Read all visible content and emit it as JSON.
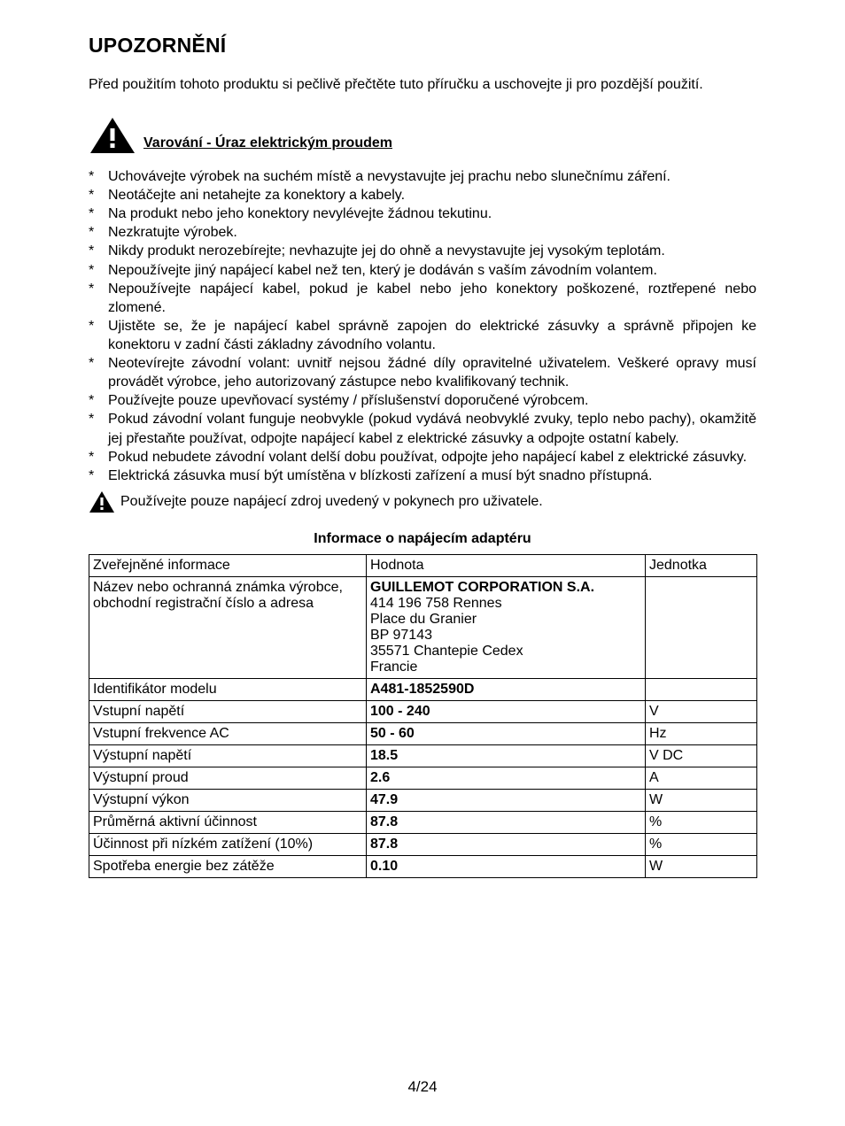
{
  "title": "UPOZORNĚNÍ",
  "intro": "Před použitím tohoto produktu si pečlivě přečtěte tuto příručku a uschovejte ji pro pozdější použití.",
  "warning_heading": "Varování - Úraz elektrickým proudem",
  "bullets": [
    {
      "text": "Uchovávejte výrobek na suchém místě a nevystavujte jej prachu nebo slunečnímu záření.",
      "justify": false
    },
    {
      "text": "Neotáčejte ani netahejte za konektory a kabely.",
      "justify": false
    },
    {
      "text": "Na produkt nebo jeho konektory nevylévejte žádnou tekutinu.",
      "justify": false
    },
    {
      "text": "Nezkratujte výrobek.",
      "justify": false
    },
    {
      "text": "Nikdy produkt nerozebírejte; nevhazujte jej do ohně a nevystavujte jej vysokým teplotám.",
      "justify": false
    },
    {
      "text": "Nepoužívejte jiný napájecí kabel než ten, který je dodáván s vaším závodním volantem.",
      "justify": false
    },
    {
      "text": "Nepoužívejte napájecí kabel, pokud je kabel nebo jeho konektory poškozené, roztřepené nebo zlomené.",
      "justify": true
    },
    {
      "text": "Ujistěte se, že je napájecí kabel správně zapojen do elektrické zásuvky a správně připojen ke konektoru v zadní části základny závodního volantu.",
      "justify": true
    },
    {
      "text": "Neotevírejte závodní volant: uvnitř nejsou žádné díly opravitelné uživatelem. Veškeré opravy musí provádět výrobce, jeho autorizovaný zástupce nebo kvalifikovaný technik.",
      "justify": true
    },
    {
      "text": "Používejte pouze upevňovací systémy / příslušenství doporučené výrobcem.",
      "justify": false
    },
    {
      "text": "Pokud závodní volant funguje neobvykle (pokud vydává neobvyklé zvuky, teplo nebo pachy), okamžitě jej přestaňte používat, odpojte napájecí kabel z elektrické zásuvky a odpojte ostatní kabely.",
      "justify": true
    },
    {
      "text": "Pokud nebudete závodní volant delší dobu používat, odpojte jeho napájecí kabel z elektrické zásuvky.",
      "justify": true
    },
    {
      "text": "Elektrická zásuvka musí být umístěna v blízkosti zařízení a musí být snadno přístupná.",
      "justify": false
    }
  ],
  "inline_warning_text": "Používejte pouze napájecí zdroj uvedený v pokynech pro uživatele.",
  "table_title": "Informace o napájecím adaptéru",
  "table": {
    "header": {
      "c1": "Zveřejněné informace",
      "c2": "Hodnota",
      "c3": "Jednotka"
    },
    "rows": [
      {
        "c1": "Název nebo ochranná známka výrobce, obchodní registrační číslo a adresa",
        "c2_bold": "GUILLEMOT CORPORATION S.A.",
        "c2_rest": "414 196 758 Rennes\nPlace du Granier\nBP 97143\n35571 Chantepie Cedex\nFrancie",
        "c3": ""
      },
      {
        "c1": "Identifikátor modelu",
        "c2_bold": "A481-1852590D",
        "c3": ""
      },
      {
        "c1": "Vstupní napětí",
        "c2_bold": "100 - 240",
        "c3": "V"
      },
      {
        "c1": "Vstupní frekvence AC",
        "c2_bold": "50 - 60",
        "c3": "Hz"
      },
      {
        "c1": "Výstupní napětí",
        "c2_bold": "18.5",
        "c3": "V DC"
      },
      {
        "c1": "Výstupní proud",
        "c2_bold": "2.6",
        "c3": "A"
      },
      {
        "c1": "Výstupní výkon",
        "c2_bold": "47.9",
        "c3": "W"
      },
      {
        "c1": "Průměrná aktivní účinnost",
        "c2_bold": "87.8",
        "c3": "%"
      },
      {
        "c1": "Účinnost při nízkém zatížení (10%)",
        "c2_bold": "87.8",
        "c3": "%"
      },
      {
        "c1": "Spotřeba energie bez zátěže",
        "c2_bold": "0.10",
        "c3": "W"
      }
    ]
  },
  "page_number": "4/24",
  "icon_color": "#000000"
}
